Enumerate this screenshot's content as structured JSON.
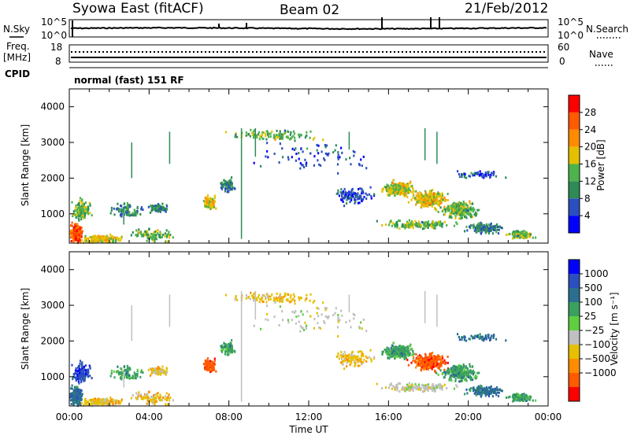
{
  "header": {
    "station": "Syowa East (fitACF)",
    "beam": "Beam 02",
    "date": "21/Feb/2012"
  },
  "noise_panel": {
    "left_label": "N.Sky",
    "right_label": "N.Search",
    "y_ticks_left": [
      "10^5",
      "10^0"
    ],
    "y_ticks_right": [
      "10^5",
      "10^0"
    ]
  },
  "freq_panel": {
    "left_label_1": "Freq.",
    "left_label_2": "[MHz]",
    "right_label": "Nave",
    "y_ticks_left": [
      "18",
      "8"
    ],
    "y_ticks_right": [
      "60",
      "0"
    ],
    "cpid_label": "CPID",
    "cpid_value": "normal (fast) 151 RF"
  },
  "colors": {
    "power": [
      "#0000ff",
      "#2b4fbf",
      "#2e8b57",
      "#4db34d",
      "#e6c000",
      "#ff8c00",
      "#ff5a00",
      "#ff0000"
    ],
    "velocity": [
      "#ff0000",
      "#ff5a00",
      "#ff8c00",
      "#e6c000",
      "#c0c0c0",
      "#5fcf3f",
      "#3aa060",
      "#2b6f8f",
      "#2b4fbf",
      "#0000ff"
    ]
  },
  "chart_data": [
    {
      "type": "heatmap",
      "name": "power",
      "ylabel": "Slant Range [km]",
      "xlim": [
        "00:00",
        "24:00"
      ],
      "ylim": [
        180,
        4500
      ],
      "y_ticks": [
        "1000",
        "2000",
        "3000",
        "4000"
      ],
      "x_ticks": [
        "00:00",
        "04:00",
        "08:00",
        "12:00",
        "16:00",
        "20:00",
        "00:00"
      ],
      "colorbar_label": "Power [dB]",
      "colorbar_ticks": [
        "4",
        "8",
        "12",
        "16",
        "20",
        "24",
        "28"
      ]
    },
    {
      "type": "heatmap",
      "name": "velocity",
      "ylabel": "Slant Range [km]",
      "xlabel": "Time UT",
      "xlim": [
        "00:00",
        "24:00"
      ],
      "ylim": [
        180,
        4500
      ],
      "y_ticks": [
        "1000",
        "2000",
        "3000",
        "4000"
      ],
      "x_ticks": [
        "00:00",
        "04:00",
        "08:00",
        "12:00",
        "16:00",
        "20:00",
        "00:00"
      ],
      "colorbar_label": "Velocity [m s⁻¹]",
      "colorbar_ticks": [
        "1000",
        "500",
        "100",
        "25",
        "−25",
        "−100",
        "−500",
        "−1000"
      ]
    }
  ]
}
